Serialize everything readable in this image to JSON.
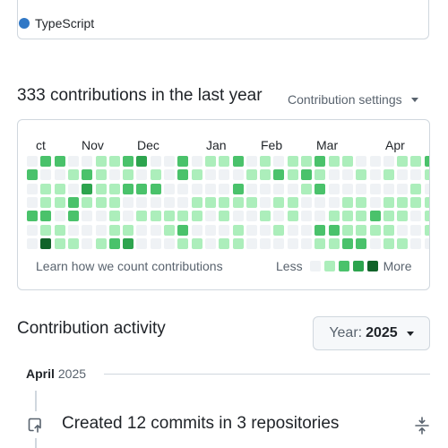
{
  "top_card": {
    "language": {
      "name": "TypeScript",
      "color": "#3178c6"
    }
  },
  "contributions": {
    "title": "333 contributions in the last year",
    "settings_label": "Contribution settings",
    "months": [
      "ct",
      "Nov",
      "Dec",
      "Jan",
      "Feb",
      "Mar",
      "Apr"
    ],
    "learn_link": "Learn how we count contributions",
    "legend_less": "Less",
    "legend_more": "More",
    "level_colors": [
      "#eff2f5",
      "#aceebb",
      "#4ac26b",
      "#2da44e",
      "#116329"
    ],
    "weeks": [
      [
        0,
        2,
        0,
        0,
        2,
        0,
        0
      ],
      [
        2,
        0,
        1,
        1,
        2,
        1,
        4
      ],
      [
        2,
        0,
        1,
        1,
        0,
        1,
        1
      ],
      [
        0,
        1,
        0,
        2,
        2,
        0,
        1
      ],
      [
        0,
        2,
        3,
        1,
        0,
        0,
        0
      ],
      [
        1,
        1,
        1,
        1,
        0,
        0,
        1
      ],
      [
        1,
        0,
        1,
        1,
        1,
        1,
        2
      ],
      [
        2,
        1,
        2,
        0,
        0,
        1,
        3
      ],
      [
        3,
        0,
        2,
        0,
        1,
        0,
        0
      ],
      [
        0,
        1,
        2,
        0,
        1,
        0,
        0
      ],
      [
        0,
        0,
        0,
        0,
        1,
        1,
        0
      ],
      [
        2,
        2,
        0,
        0,
        1,
        2,
        1
      ],
      [
        0,
        1,
        0,
        1,
        1,
        0,
        1
      ],
      [
        1,
        0,
        0,
        1,
        0,
        0,
        0
      ],
      [
        1,
        0,
        0,
        1,
        1,
        0,
        1
      ],
      [
        2,
        0,
        2,
        1,
        0,
        1,
        1
      ],
      [
        0,
        1,
        0,
        1,
        0,
        0,
        0
      ],
      [
        1,
        1,
        0,
        0,
        1,
        0,
        0
      ],
      [
        0,
        2,
        0,
        1,
        0,
        1,
        0
      ],
      [
        1,
        1,
        0,
        1,
        1,
        0,
        0
      ],
      [
        1,
        2,
        1,
        0,
        0,
        0,
        0
      ],
      [
        2,
        1,
        2,
        0,
        0,
        2,
        1
      ],
      [
        1,
        0,
        0,
        0,
        1,
        2,
        1
      ],
      [
        1,
        0,
        0,
        1,
        1,
        1,
        2
      ],
      [
        0,
        1,
        0,
        1,
        1,
        1,
        2
      ],
      [
        0,
        0,
        0,
        0,
        2,
        1,
        0
      ],
      [
        0,
        1,
        0,
        1,
        1,
        1,
        1
      ],
      [
        1,
        0,
        0,
        1,
        1,
        0,
        1
      ],
      [
        1,
        0,
        1,
        1,
        0,
        0,
        0
      ],
      [
        2,
        1,
        0,
        1,
        1,
        1,
        0
      ],
      [
        1,
        0,
        1,
        1,
        1,
        0,
        1
      ]
    ]
  },
  "activity": {
    "title": "Contribution activity",
    "year_label": "Year:",
    "year_value": "2025",
    "month_name": "April",
    "month_year": "2025",
    "item_text": "Created 12 commits in 3 repositories"
  }
}
